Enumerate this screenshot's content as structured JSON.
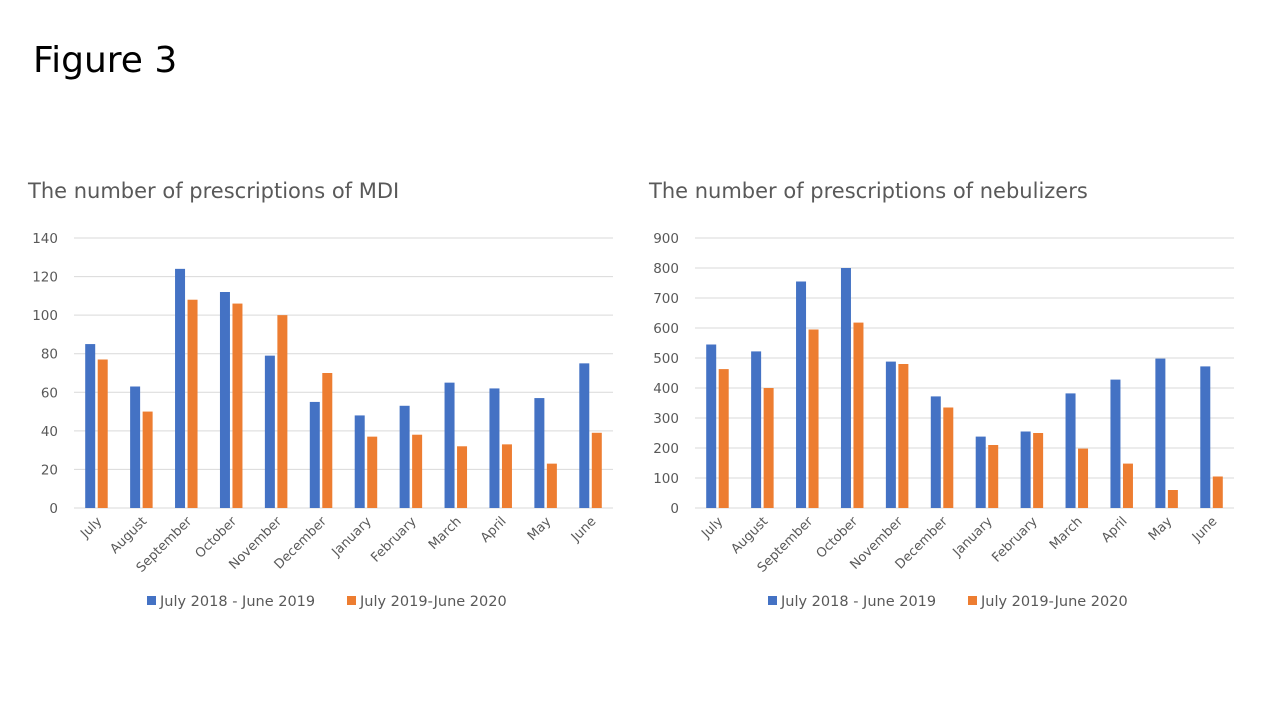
{
  "slide": {
    "title": "Figure 3"
  },
  "colors": {
    "series_1": "#4472C4",
    "series_2": "#ED7D31",
    "text": "#595959",
    "grid": "#D9D9D9"
  },
  "chart_data": [
    {
      "id": "mdi",
      "type": "bar",
      "title": "The number of prescriptions of MDI",
      "xlabel": "",
      "ylabel": "",
      "categories": [
        "July",
        "August",
        "September",
        "October",
        "November",
        "December",
        "January",
        "February",
        "March",
        "April",
        "May",
        "June"
      ],
      "series": [
        {
          "name": "July 2018 - June 2019",
          "values": [
            85,
            63,
            124,
            112,
            79,
            55,
            48,
            53,
            65,
            62,
            57,
            75
          ]
        },
        {
          "name": "July 2019-June 2020",
          "values": [
            77,
            50,
            108,
            106,
            100,
            70,
            37,
            38,
            32,
            33,
            23,
            39
          ]
        }
      ],
      "ylim": [
        0,
        140
      ],
      "yticks": [
        0,
        20,
        40,
        60,
        80,
        100,
        120,
        140
      ],
      "grid": true,
      "legend": "bottom"
    },
    {
      "id": "neb",
      "type": "bar",
      "title": "The number of prescriptions of nebulizers",
      "xlabel": "",
      "ylabel": "",
      "categories": [
        "July",
        "August",
        "September",
        "October",
        "November",
        "December",
        "January",
        "February",
        "March",
        "April",
        "May",
        "June"
      ],
      "series": [
        {
          "name": "July 2018 - June 2019",
          "values": [
            545,
            522,
            755,
            800,
            488,
            372,
            238,
            255,
            382,
            428,
            498,
            472
          ]
        },
        {
          "name": "July 2019-June 2020",
          "values": [
            463,
            400,
            595,
            618,
            480,
            335,
            210,
            250,
            198,
            148,
            60,
            105
          ]
        }
      ],
      "ylim": [
        0,
        900
      ],
      "yticks": [
        0,
        100,
        200,
        300,
        400,
        500,
        600,
        700,
        800,
        900
      ],
      "grid": true,
      "legend": "bottom"
    }
  ]
}
